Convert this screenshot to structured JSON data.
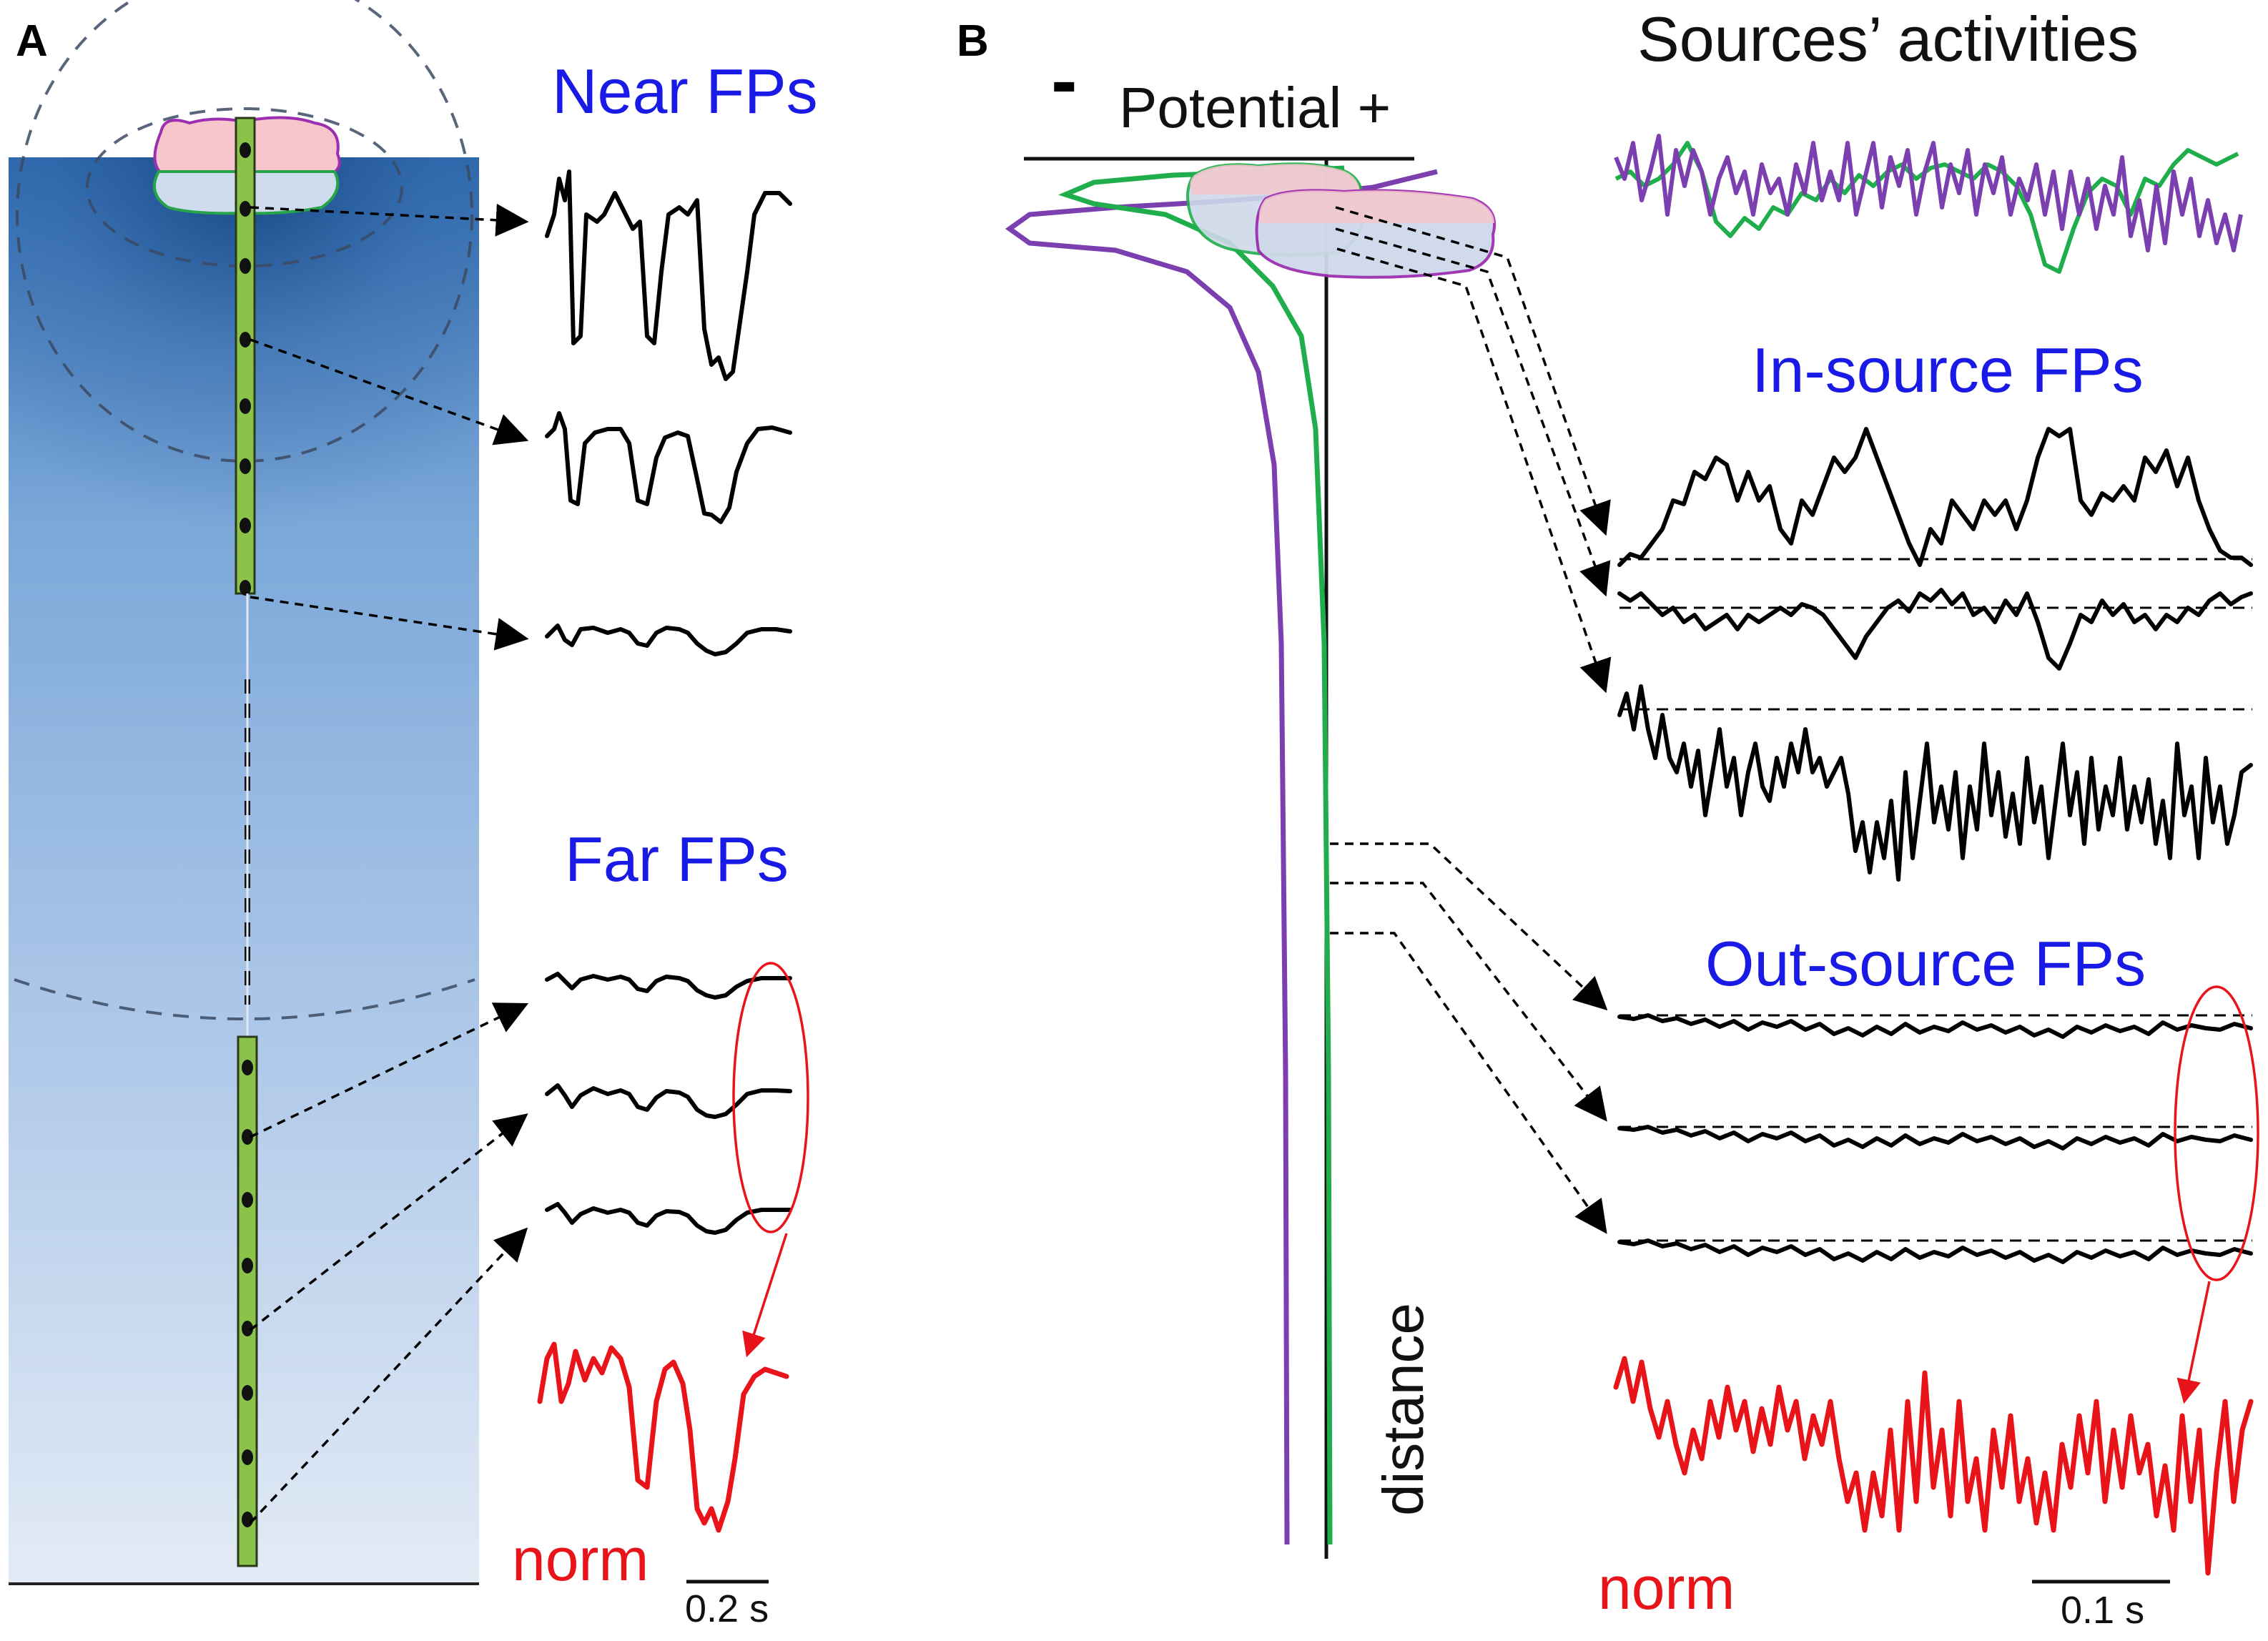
{
  "colors": {
    "label_blue": "#1a1ae6",
    "norm_red": "#e8141a",
    "purple_source": "#7b3fb0",
    "green_source": "#1fae4b",
    "electrode_green": "#8bc34a",
    "tissue_top": "#1f5a9c",
    "tissue_bottom": "#dfe8f4"
  },
  "panel_a": {
    "label": "A",
    "near_title": "Near FPs",
    "far_title": "Far FPs",
    "norm_label": "norm",
    "scale_label": "0.2 s"
  },
  "panel_b": {
    "label": "B",
    "potential_minus": "-",
    "potential_label": "Potential +",
    "sources_title": "Sources’ activities",
    "in_source_title": "In-source FPs",
    "out_source_title": "Out-source FPs",
    "distance_label": "distance",
    "norm_label": "norm",
    "scale_label": "0.1 s"
  }
}
